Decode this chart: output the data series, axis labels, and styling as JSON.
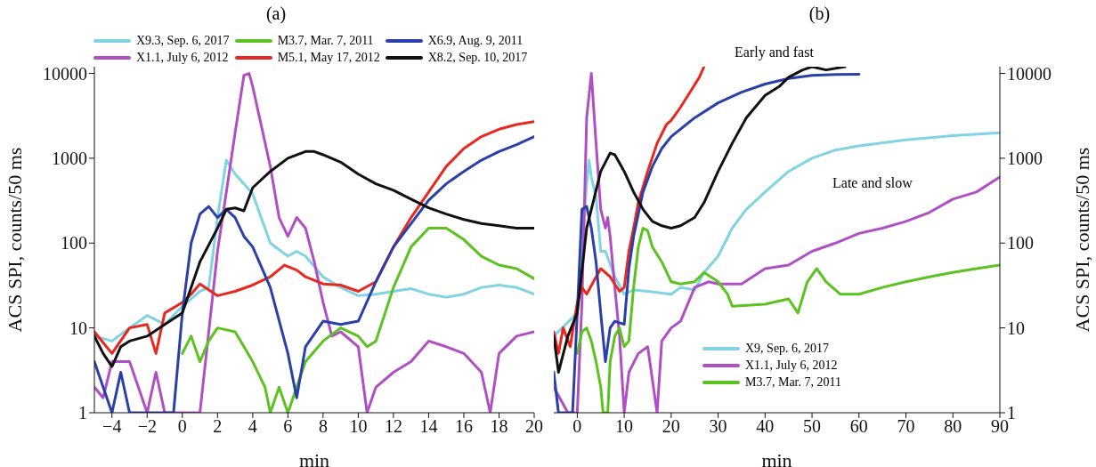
{
  "chart_data": [
    {
      "type": "line",
      "title": "(a)",
      "xlabel": "min",
      "ylabel": "ACS SPI, counts/50 ms",
      "log": "y",
      "legend": "top",
      "xlim": [
        -5,
        20
      ],
      "xticks": [
        -4,
        -2,
        0,
        2,
        4,
        6,
        8,
        10,
        12,
        14,
        16,
        18,
        20
      ],
      "ylim": [
        1,
        12000
      ],
      "yticks": [
        1,
        10,
        100,
        1000,
        10000
      ],
      "series": [
        {
          "name": "X9.3, Sep. 6, 2017",
          "color": "#7fd3e3",
          "x": [
            -5,
            -4,
            -3,
            -2,
            -1,
            0,
            1,
            1.5,
            2,
            2.5,
            3,
            3.5,
            4,
            5,
            6,
            6.5,
            7,
            8,
            9,
            10,
            11,
            12,
            13,
            14,
            15,
            16,
            17,
            18,
            19,
            20
          ],
          "values": [
            8,
            7,
            10,
            14,
            11,
            18,
            27,
            30,
            200,
            950,
            650,
            500,
            380,
            100,
            70,
            80,
            70,
            40,
            30,
            24,
            25,
            27,
            29,
            25,
            23,
            25,
            30,
            32,
            30,
            25
          ]
        },
        {
          "name": "X1.1,  July 6, 2012",
          "color": "#b04fc4",
          "x": [
            -5,
            -4.5,
            -4,
            -3,
            -2.5,
            -2,
            -1.5,
            -1,
            1,
            2,
            3,
            3.5,
            3.8,
            4,
            5,
            5.5,
            6,
            6.5,
            7,
            7.5,
            8,
            8.5,
            9,
            10,
            10.5,
            11,
            12,
            13,
            14,
            15,
            16,
            17,
            17.5,
            18,
            19,
            20
          ],
          "values": [
            2,
            1.5,
            4,
            4,
            2,
            1,
            3,
            1,
            1,
            80,
            2000,
            9500,
            10000,
            7000,
            800,
            200,
            120,
            200,
            150,
            60,
            20,
            8,
            9,
            6,
            1,
            2,
            3,
            4,
            7,
            6,
            5,
            3,
            1,
            5,
            8,
            9
          ]
        },
        {
          "name": "M3.7, Mar. 7, 2011",
          "color": "#5cc21f",
          "x": [
            0,
            0.5,
            1,
            1.5,
            2,
            3,
            4,
            4.7,
            5,
            5.5,
            6,
            6.5,
            7,
            8,
            9,
            10,
            10.5,
            11,
            12,
            13,
            14,
            15,
            16,
            17,
            18,
            19,
            20
          ],
          "values": [
            5,
            8,
            4,
            7,
            10,
            9,
            4,
            2,
            1,
            2,
            1,
            2,
            4,
            7,
            10,
            8,
            6,
            7,
            30,
            90,
            150,
            150,
            110,
            70,
            55,
            50,
            38
          ]
        },
        {
          "name": "M5.1, May 17, 2012",
          "color": "#e8271f",
          "x": [
            -5,
            -4,
            -3,
            -2,
            -1.5,
            -1,
            0,
            0.5,
            1,
            2,
            3,
            4,
            5,
            5.8,
            6.5,
            7,
            8,
            9,
            10,
            11,
            12,
            13,
            14,
            15,
            16,
            17,
            18,
            19,
            20
          ],
          "values": [
            9,
            5,
            10,
            11,
            5,
            15,
            20,
            25,
            33,
            24,
            27,
            32,
            40,
            55,
            48,
            40,
            33,
            32,
            27,
            35,
            90,
            200,
            400,
            800,
            1300,
            1800,
            2200,
            2500,
            2700
          ]
        },
        {
          "name": "X6.9, Aug. 9, 2011",
          "color": "#2b3fa8",
          "x": [
            -5,
            -4.5,
            -4,
            -3.5,
            -3,
            -1,
            -0.5,
            0,
            0.5,
            1,
            1.5,
            2,
            2.5,
            3,
            3.5,
            4,
            5,
            6,
            6.5,
            7,
            8,
            9,
            10,
            11,
            12,
            13,
            14,
            15,
            16,
            17,
            18,
            19,
            20
          ],
          "values": [
            4,
            2,
            1,
            3,
            1,
            1,
            1,
            15,
            100,
            220,
            270,
            200,
            250,
            200,
            120,
            90,
            30,
            5,
            1.5,
            6,
            12,
            11,
            12,
            35,
            90,
            170,
            320,
            500,
            700,
            950,
            1200,
            1450,
            1800
          ]
        },
        {
          "name": "X8.2, Sep. 10, 2017",
          "color": "#111111",
          "x": [
            -5,
            -4.5,
            -4,
            -3.5,
            -3,
            -2,
            -1,
            0,
            1,
            2,
            2.5,
            3,
            3.5,
            4,
            5,
            6,
            7,
            7.5,
            8,
            9,
            10,
            11,
            12,
            13,
            14,
            15,
            16,
            17,
            18,
            19,
            20
          ],
          "values": [
            8,
            5,
            3.5,
            6,
            7,
            8,
            11,
            15,
            60,
            150,
            250,
            260,
            240,
            450,
            700,
            1000,
            1200,
            1200,
            1100,
            900,
            650,
            500,
            420,
            330,
            260,
            220,
            190,
            170,
            160,
            150,
            150
          ]
        }
      ]
    },
    {
      "type": "line",
      "title": "(b)",
      "xlabel": "min",
      "y2label": "ACS SPI, counts/50 ms",
      "log": "y2",
      "legend": "bottom",
      "xlim": [
        -5,
        90
      ],
      "xticks": [
        0,
        10,
        20,
        30,
        40,
        50,
        60,
        70,
        80,
        90
      ],
      "y2lim": [
        1,
        12000
      ],
      "y2ticks": [
        1,
        10,
        100,
        1000,
        10000
      ],
      "annotations": [
        "Early and fast",
        "Late and slow"
      ],
      "series": [
        {
          "name": "X9, Sep. 6, 2017",
          "color": "#7fd3e3",
          "axis": "y2",
          "x": [
            -5,
            0,
            2,
            2.5,
            3,
            4,
            5,
            6,
            8,
            10,
            12,
            15,
            20,
            22,
            25,
            27,
            30,
            33,
            36,
            40,
            45,
            50,
            55,
            60,
            70,
            80,
            90
          ],
          "values": [
            8,
            15,
            500,
            950,
            600,
            350,
            80,
            80,
            40,
            25,
            28,
            27,
            25,
            30,
            28,
            45,
            70,
            150,
            250,
            400,
            700,
            1000,
            1250,
            1400,
            1650,
            1850,
            2000
          ]
        },
        {
          "name": "X1.1, July 6, 2012",
          "color": "#b04fc4",
          "axis": "y2",
          "x": [
            -5,
            -2,
            0,
            1,
            2,
            3,
            4,
            5,
            6,
            6.5,
            7,
            8,
            9,
            10,
            11,
            13,
            15,
            17,
            18,
            20,
            22,
            25,
            28,
            30,
            35,
            40,
            45,
            50,
            55,
            60,
            65,
            70,
            75,
            80,
            85,
            90
          ],
          "values": [
            2,
            1,
            1,
            20,
            3000,
            10000,
            1500,
            250,
            150,
            200,
            120,
            30,
            8,
            1,
            3,
            5,
            6,
            1,
            7,
            10,
            12,
            30,
            35,
            33,
            33,
            50,
            55,
            80,
            100,
            130,
            150,
            180,
            230,
            330,
            400,
            600
          ]
        },
        {
          "name": "M3.7, Mar. 7, 2011",
          "color": "#5cc21f",
          "axis": "y2",
          "x": [
            0,
            1,
            2,
            3,
            4,
            5,
            5.5,
            6.5,
            7,
            8,
            9,
            10,
            11,
            12,
            13,
            14,
            15,
            16,
            18,
            20,
            22,
            25,
            27,
            30,
            32,
            33,
            40,
            45,
            47,
            49,
            51,
            53,
            56,
            60,
            65,
            70,
            75,
            80,
            85,
            90
          ],
          "values": [
            5,
            9,
            10,
            7,
            4,
            2,
            1,
            1,
            4,
            8,
            10,
            6,
            7,
            30,
            90,
            150,
            140,
            90,
            60,
            35,
            33,
            35,
            45,
            35,
            25,
            18,
            19,
            22,
            15,
            35,
            50,
            35,
            25,
            25,
            30,
            35,
            40,
            45,
            50,
            55
          ]
        },
        {
          "color": "#e8271f",
          "axis": "y2",
          "x": [
            -5,
            -4,
            -3,
            -1.5,
            0,
            1,
            2,
            4,
            5,
            7,
            9,
            10,
            11,
            12,
            13,
            15,
            17,
            19,
            20,
            22,
            24,
            26,
            27
          ],
          "values": [
            9,
            5,
            10,
            6,
            20,
            30,
            25,
            40,
            50,
            40,
            27,
            30,
            80,
            150,
            300,
            700,
            1500,
            2500,
            2800,
            4000,
            6000,
            9000,
            12000
          ]
        },
        {
          "color": "#2b3fa8",
          "axis": "y2",
          "x": [
            -5,
            -4,
            -1,
            0,
            1,
            2,
            3,
            4,
            5,
            6,
            7,
            8,
            10,
            11,
            12,
            14,
            16,
            18,
            20,
            25,
            30,
            35,
            40,
            45,
            50,
            55,
            60
          ],
          "values": [
            3,
            1,
            1,
            15,
            250,
            270,
            150,
            60,
            15,
            4,
            10,
            12,
            11,
            50,
            120,
            400,
            800,
            1300,
            1800,
            3000,
            4500,
            6000,
            7500,
            8700,
            9500,
            9700,
            9800
          ]
        },
        {
          "color": "#111111",
          "axis": "y2",
          "x": [
            -5,
            -4,
            -2,
            0,
            2,
            3,
            5,
            7,
            8,
            10,
            12,
            14,
            16,
            18,
            20,
            22,
            25,
            27,
            30,
            33,
            36,
            40,
            43,
            45,
            48,
            50,
            53,
            57
          ],
          "values": [
            8,
            3,
            8,
            15,
            150,
            250,
            700,
            1150,
            1100,
            700,
            400,
            250,
            180,
            160,
            150,
            160,
            200,
            300,
            700,
            1500,
            3000,
            5500,
            7000,
            9000,
            11000,
            12000,
            11000,
            12000
          ]
        }
      ]
    }
  ]
}
